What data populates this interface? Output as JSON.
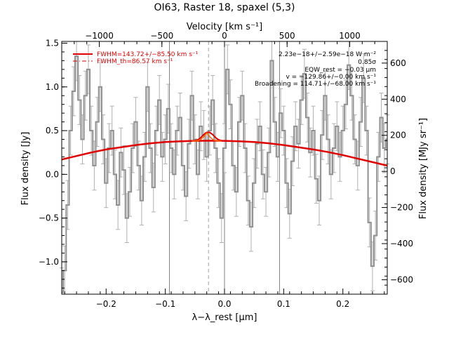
{
  "chart_data": {
    "type": "line",
    "title": "OI63, Raster 18, spaxel (5,3)",
    "xlabel": "λ−λ_rest [μm]",
    "ylabel": "Flux density [Jy]",
    "x2label": "Velocity [km s⁻¹]",
    "y2label": "Flux density [MJy sr⁻¹]",
    "xlim": [
      -0.275,
      0.275
    ],
    "ylim": [
      -1.37,
      1.52
    ],
    "x_ticks": [
      -0.2,
      -0.1,
      0.0,
      0.1,
      0.2
    ],
    "x_tick_labels": [
      "−0.2",
      "−0.1",
      "0.0",
      "0.1",
      "0.2"
    ],
    "y_ticks": [
      -1.0,
      -0.5,
      0.0,
      0.5,
      1.0,
      1.5
    ],
    "y_tick_labels": [
      "−1.0",
      "−0.5",
      "0.0",
      "0.5",
      "1.0",
      "1.5"
    ],
    "velocity_ticks": [
      -1000,
      -500,
      0,
      500,
      1000
    ],
    "velocity_tick_labels": [
      "−1000",
      "−500",
      "0",
      "500",
      "1000"
    ],
    "velocity_range": [
      -1300,
      1300
    ],
    "right_ticks": [
      -600,
      -400,
      -200,
      0,
      200,
      400,
      600
    ],
    "right_tick_labels": [
      "−600",
      "−400",
      "−200",
      "0",
      "200",
      "400",
      "600"
    ],
    "right_range": [
      -680,
      720
    ],
    "vertical_lines_solid": [
      -0.093,
      0.0,
      0.093
    ],
    "vertical_line_dashed": -0.027,
    "spectrum": {
      "x": [
        -0.275,
        -0.27,
        -0.265,
        -0.26,
        -0.255,
        -0.25,
        -0.245,
        -0.24,
        -0.235,
        -0.23,
        -0.225,
        -0.22,
        -0.215,
        -0.21,
        -0.205,
        -0.2,
        -0.195,
        -0.19,
        -0.185,
        -0.18,
        -0.175,
        -0.17,
        -0.165,
        -0.16,
        -0.155,
        -0.15,
        -0.145,
        -0.14,
        -0.135,
        -0.13,
        -0.125,
        -0.12,
        -0.115,
        -0.11,
        -0.105,
        -0.1,
        -0.095,
        -0.09,
        -0.085,
        -0.08,
        -0.075,
        -0.07,
        -0.065,
        -0.06,
        -0.055,
        -0.05,
        -0.045,
        -0.04,
        -0.035,
        -0.03,
        -0.025,
        -0.02,
        -0.015,
        -0.01,
        -0.005,
        0.0,
        0.005,
        0.01,
        0.015,
        0.02,
        0.025,
        0.03,
        0.035,
        0.04,
        0.045,
        0.05,
        0.055,
        0.06,
        0.065,
        0.07,
        0.075,
        0.08,
        0.085,
        0.09,
        0.095,
        0.1,
        0.105,
        0.11,
        0.115,
        0.12,
        0.125,
        0.13,
        0.135,
        0.14,
        0.145,
        0.15,
        0.155,
        0.16,
        0.165,
        0.17,
        0.175,
        0.18,
        0.185,
        0.19,
        0.195,
        0.2,
        0.205,
        0.21,
        0.215,
        0.22,
        0.225,
        0.23,
        0.235,
        0.24,
        0.245,
        0.25,
        0.255,
        0.26,
        0.265,
        0.27,
        0.275
      ],
      "y": [
        -1.35,
        -1.1,
        -0.35,
        0.5,
        0.95,
        1.35,
        0.85,
        0.4,
        0.9,
        1.2,
        0.5,
        0.1,
        0.6,
        1.0,
        0.4,
        -0.1,
        0.3,
        0.5,
        0.0,
        -0.35,
        0.25,
        0.05,
        -0.5,
        -0.2,
        0.3,
        0.6,
        0.1,
        -0.3,
        0.2,
        1.0,
        0.3,
        -0.15,
        0.5,
        0.85,
        0.2,
        0.4,
        0.75,
        0.3,
        0.0,
        0.5,
        0.65,
        0.1,
        -0.25,
        0.35,
        0.9,
        0.4,
        0.0,
        0.55,
        0.45,
        0.2,
        0.5,
        0.85,
        0.3,
        -0.1,
        -0.5,
        0.3,
        1.2,
        0.8,
        0.1,
        -0.2,
        0.6,
        0.9,
        0.3,
        -0.3,
        -0.6,
        -0.1,
        0.35,
        0.55,
        0.0,
        -0.2,
        0.25,
        1.3,
        0.6,
        0.2,
        0.7,
        0.5,
        -0.1,
        -0.45,
        0.15,
        0.55,
        0.35,
        0.85,
        1.15,
        0.65,
        0.25,
        0.5,
        -0.05,
        -0.3,
        0.45,
        0.9,
        0.4,
        0.0,
        0.3,
        0.55,
        0.2,
        0.5,
        0.8,
        1.25,
        0.9,
        0.4,
        0.1,
        0.6,
        1.1,
        0.5,
        -0.55,
        -1.05,
        -0.7,
        0.2,
        0.65,
        0.3,
        0.4
      ],
      "err": [
        0.28,
        0.28,
        0.28,
        0.28,
        0.28,
        0.28,
        0.28,
        0.28,
        0.28,
        0.28,
        0.28,
        0.28,
        0.28,
        0.28,
        0.28,
        0.28,
        0.28,
        0.28,
        0.28,
        0.28,
        0.28,
        0.28,
        0.28,
        0.28,
        0.28,
        0.28,
        0.28,
        0.28,
        0.28,
        0.28,
        0.28,
        0.28,
        0.28,
        0.28,
        0.28,
        0.28,
        0.28,
        0.28,
        0.28,
        0.28,
        0.28,
        0.28,
        0.28,
        0.28,
        0.28,
        0.28,
        0.28,
        0.28,
        0.28,
        0.28,
        0.28,
        0.28,
        0.28,
        0.28,
        0.28,
        0.28,
        0.28,
        0.28,
        0.28,
        0.28,
        0.28,
        0.28,
        0.28,
        0.28,
        0.28,
        0.28,
        0.28,
        0.28,
        0.28,
        0.28,
        0.28,
        0.28,
        0.28,
        0.28,
        0.28,
        0.28,
        0.28,
        0.28,
        0.28,
        0.28,
        0.28,
        0.28,
        0.28,
        0.28,
        0.28,
        0.28,
        0.28,
        0.28,
        0.28,
        0.28,
        0.28,
        0.28,
        0.28,
        0.28,
        0.28,
        0.28,
        0.28,
        0.28,
        0.28,
        0.28,
        0.28,
        0.28,
        0.28,
        0.28,
        0.28,
        0.28,
        0.28,
        0.28,
        0.28,
        0.28,
        0.28
      ]
    },
    "baseline": {
      "x": [
        -0.275,
        -0.25,
        -0.225,
        -0.2,
        -0.175,
        -0.15,
        -0.125,
        -0.1,
        -0.075,
        -0.05,
        -0.025,
        0.0,
        0.025,
        0.05,
        0.075,
        0.1,
        0.125,
        0.15,
        0.175,
        0.2,
        0.225,
        0.25,
        0.275
      ],
      "y": [
        0.17,
        0.21,
        0.25,
        0.285,
        0.31,
        0.335,
        0.355,
        0.37,
        0.378,
        0.383,
        0.385,
        0.383,
        0.378,
        0.37,
        0.355,
        0.335,
        0.31,
        0.285,
        0.255,
        0.22,
        0.18,
        0.14,
        0.1
      ]
    },
    "fit_model": {
      "x": [
        -0.06,
        -0.05,
        -0.045,
        -0.04,
        -0.035,
        -0.03,
        -0.025,
        -0.02,
        -0.015,
        -0.01,
        -0.005,
        0.0
      ],
      "y": [
        0.383,
        0.385,
        0.395,
        0.42,
        0.455,
        0.48,
        0.48,
        0.455,
        0.42,
        0.395,
        0.385,
        0.383
      ]
    },
    "gaussian_component": {
      "x": [
        -0.055,
        -0.045,
        -0.04,
        -0.035,
        -0.03,
        -0.025,
        -0.02,
        -0.015,
        -0.005
      ],
      "y": [
        0.38,
        0.385,
        0.4,
        0.43,
        0.475,
        0.43,
        0.4,
        0.385,
        0.38
      ]
    },
    "legend": {
      "placement": "top-left",
      "entries": [
        {
          "label": "FWHM=143.72+/−85.50 km s⁻¹",
          "color": "#e00000",
          "style": "solid"
        },
        {
          "label": "FWHM_th=86.57 km s⁻¹",
          "color": "#e00000",
          "style": "dash-dot"
        }
      ]
    },
    "annotations": [
      "2.23e−18+/−2.59e−18 W m⁻²",
      "0.85σ",
      "EQW_rest = −0.03 μm",
      "v = −129.86+/−0.00 km s⁻¹",
      "Broadening = 114.71+/−68.00 km s⁻¹"
    ],
    "colors": {
      "spectrum": "#909090",
      "error_bars": "#b0b0b0",
      "fit": "#e00000",
      "vlines": "#808080",
      "axes": "#000000"
    }
  }
}
